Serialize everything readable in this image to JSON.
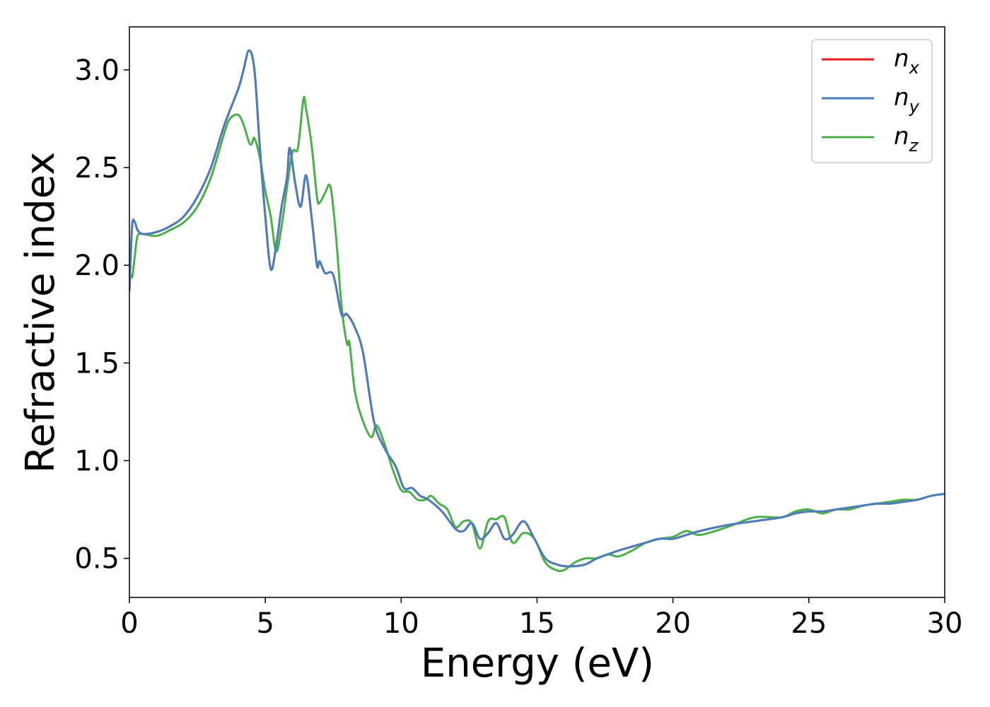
{
  "chart_data": {
    "type": "line",
    "title": "",
    "xlabel": "Energy (eV)",
    "ylabel": "Refractive index",
    "xlim": [
      0,
      30
    ],
    "ylim": [
      0.3,
      3.22
    ],
    "xticks": [
      0,
      5,
      10,
      15,
      20,
      25,
      30
    ],
    "xtick_labels": [
      "0",
      "5",
      "10",
      "15",
      "20",
      "25",
      "30"
    ],
    "yticks": [
      0.5,
      1.0,
      1.5,
      2.0,
      2.5,
      3.0
    ],
    "ytick_labels": [
      "0.5",
      "1.0",
      "1.5",
      "2.0",
      "2.5",
      "3.0"
    ],
    "grid": false,
    "legend_position": "top-right",
    "series": [
      {
        "name": "n",
        "sub": "x",
        "color": "#e41a1c",
        "x": [
          0,
          0.1,
          0.2,
          0.3,
          0.5,
          1,
          1.5,
          2,
          2.5,
          3,
          3.5,
          4,
          4.2,
          4.4,
          4.6,
          4.8,
          5.0,
          5.2,
          5.4,
          5.6,
          5.8,
          5.9,
          6.1,
          6.3,
          6.5,
          6.7,
          6.9,
          7.0,
          7.2,
          7.5,
          7.8,
          8.0,
          8.3,
          8.6,
          9.0,
          9.4,
          9.8,
          10.1,
          10.4,
          10.7,
          11,
          11.5,
          12,
          12.3,
          12.6,
          12.9,
          13.2,
          13.5,
          13.8,
          14.1,
          14.5,
          14.9,
          15.3,
          15.7,
          16.0,
          16.4,
          16.8,
          17.2,
          17.6,
          18,
          18.5,
          19,
          19.5,
          20,
          20.5,
          21,
          22,
          23,
          24,
          24.5,
          25,
          25.5,
          26,
          26.5,
          27,
          27.5,
          28,
          28.5,
          29,
          29.5,
          30
        ],
        "y": [
          1.87,
          2.2,
          2.22,
          2.18,
          2.16,
          2.17,
          2.2,
          2.25,
          2.35,
          2.5,
          2.72,
          2.9,
          3.0,
          3.1,
          3.0,
          2.6,
          2.25,
          1.98,
          2.1,
          2.3,
          2.45,
          2.6,
          2.42,
          2.3,
          2.46,
          2.25,
          2.0,
          2.02,
          1.96,
          1.95,
          1.75,
          1.75,
          1.68,
          1.55,
          1.2,
          1.06,
          0.97,
          0.86,
          0.86,
          0.82,
          0.8,
          0.74,
          0.65,
          0.64,
          0.68,
          0.6,
          0.63,
          0.68,
          0.6,
          0.62,
          0.69,
          0.6,
          0.5,
          0.47,
          0.46,
          0.46,
          0.47,
          0.5,
          0.52,
          0.54,
          0.56,
          0.58,
          0.6,
          0.6,
          0.62,
          0.64,
          0.67,
          0.69,
          0.71,
          0.73,
          0.74,
          0.74,
          0.75,
          0.76,
          0.77,
          0.78,
          0.78,
          0.79,
          0.8,
          0.82,
          0.83
        ]
      },
      {
        "name": "n",
        "sub": "y",
        "color": "#4a7fbb",
        "x": [
          0,
          0.1,
          0.2,
          0.3,
          0.5,
          1,
          1.5,
          2,
          2.5,
          3,
          3.5,
          4,
          4.2,
          4.4,
          4.6,
          4.8,
          5.0,
          5.2,
          5.4,
          5.6,
          5.8,
          5.9,
          6.1,
          6.3,
          6.5,
          6.7,
          6.9,
          7.0,
          7.2,
          7.5,
          7.8,
          8.0,
          8.3,
          8.6,
          9.0,
          9.4,
          9.8,
          10.1,
          10.4,
          10.7,
          11,
          11.5,
          12,
          12.3,
          12.6,
          12.9,
          13.2,
          13.5,
          13.8,
          14.1,
          14.5,
          14.9,
          15.3,
          15.7,
          16.0,
          16.4,
          16.8,
          17.2,
          17.6,
          18,
          18.5,
          19,
          19.5,
          20,
          20.5,
          21,
          22,
          23,
          24,
          24.5,
          25,
          25.5,
          26,
          26.5,
          27,
          27.5,
          28,
          28.5,
          29,
          29.5,
          30
        ],
        "y": [
          1.87,
          2.2,
          2.22,
          2.18,
          2.16,
          2.17,
          2.2,
          2.25,
          2.35,
          2.5,
          2.72,
          2.9,
          3.0,
          3.1,
          3.0,
          2.6,
          2.25,
          1.98,
          2.1,
          2.3,
          2.45,
          2.6,
          2.42,
          2.3,
          2.46,
          2.25,
          2.0,
          2.02,
          1.96,
          1.95,
          1.75,
          1.75,
          1.68,
          1.55,
          1.2,
          1.06,
          0.97,
          0.86,
          0.86,
          0.82,
          0.8,
          0.74,
          0.65,
          0.64,
          0.68,
          0.6,
          0.63,
          0.68,
          0.6,
          0.62,
          0.69,
          0.6,
          0.5,
          0.47,
          0.46,
          0.46,
          0.47,
          0.5,
          0.52,
          0.54,
          0.56,
          0.58,
          0.6,
          0.6,
          0.62,
          0.64,
          0.67,
          0.69,
          0.71,
          0.73,
          0.74,
          0.74,
          0.75,
          0.76,
          0.77,
          0.78,
          0.78,
          0.79,
          0.8,
          0.82,
          0.83
        ]
      },
      {
        "name": "n",
        "sub": "z",
        "color": "#4daf4a",
        "x": [
          0,
          0.1,
          0.2,
          0.3,
          0.5,
          1,
          1.5,
          2,
          2.5,
          3,
          3.5,
          3.7,
          4.0,
          4.2,
          4.4,
          4.5,
          4.6,
          4.8,
          5.0,
          5.2,
          5.4,
          5.6,
          5.8,
          6.0,
          6.2,
          6.4,
          6.5,
          6.7,
          6.9,
          7.0,
          7.2,
          7.4,
          7.6,
          7.8,
          8.0,
          8.1,
          8.3,
          8.6,
          8.9,
          9.1,
          9.4,
          9.7,
          10.0,
          10.3,
          10.6,
          10.9,
          11.1,
          11.4,
          11.7,
          12.0,
          12.3,
          12.6,
          12.9,
          13.2,
          13.5,
          13.8,
          14.1,
          14.5,
          14.9,
          15.3,
          15.7,
          16.0,
          16.4,
          16.8,
          17.2,
          17.6,
          18.0,
          18.5,
          19,
          19.5,
          20,
          20.5,
          21,
          22,
          23,
          24,
          24.5,
          25,
          25.5,
          26,
          26.5,
          27,
          27.5,
          28,
          28.5,
          29,
          29.5,
          30
        ],
        "y": [
          1.97,
          1.94,
          2.05,
          2.15,
          2.16,
          2.15,
          2.18,
          2.22,
          2.3,
          2.45,
          2.68,
          2.75,
          2.77,
          2.72,
          2.63,
          2.62,
          2.65,
          2.55,
          2.38,
          2.25,
          2.07,
          2.2,
          2.4,
          2.58,
          2.6,
          2.85,
          2.8,
          2.62,
          2.35,
          2.32,
          2.37,
          2.4,
          2.15,
          1.8,
          1.6,
          1.6,
          1.35,
          1.2,
          1.12,
          1.18,
          1.08,
          0.95,
          0.85,
          0.84,
          0.8,
          0.8,
          0.82,
          0.78,
          0.75,
          0.66,
          0.69,
          0.68,
          0.55,
          0.69,
          0.7,
          0.71,
          0.58,
          0.63,
          0.6,
          0.48,
          0.44,
          0.44,
          0.48,
          0.5,
          0.5,
          0.52,
          0.51,
          0.54,
          0.58,
          0.6,
          0.61,
          0.64,
          0.62,
          0.66,
          0.71,
          0.71,
          0.74,
          0.75,
          0.73,
          0.75,
          0.75,
          0.77,
          0.78,
          0.79,
          0.8,
          0.8,
          0.82,
          0.83
        ]
      }
    ]
  }
}
